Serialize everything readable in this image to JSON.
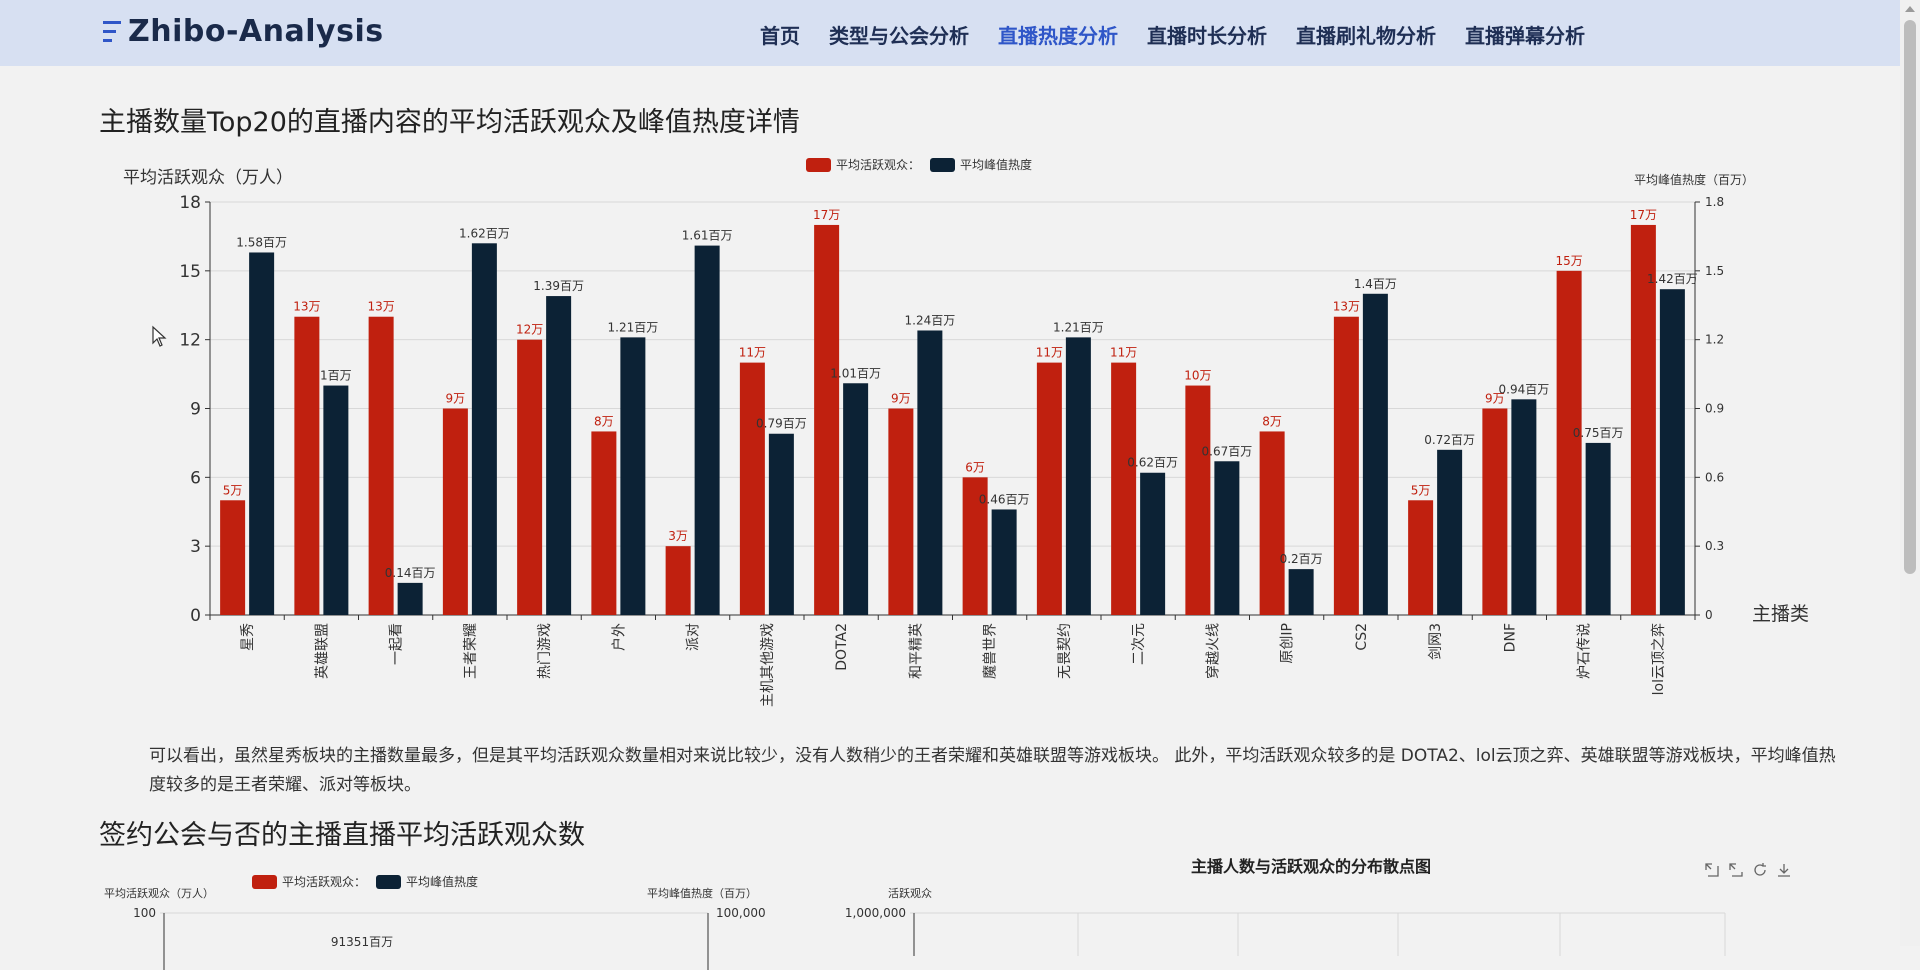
{
  "brand": {
    "name": "Zhibo-Analysis"
  },
  "nav": {
    "items": [
      "首页",
      "类型与公会分析",
      "直播热度分析",
      "直播时长分析",
      "直播刷礼物分析",
      "直播弹幕分析"
    ],
    "active_index": 2
  },
  "section1": {
    "title": "主播数量Top20的直播内容的平均活跃观众及峰值热度详情"
  },
  "section2": {
    "title": "签约公会与否的主播直播平均活跃观众数"
  },
  "paragraph": {
    "text": "可以看出，虽然星秀板块的主播数量最多，但是其平均活跃观众数量相对来说比较少，没有人数稍少的王者荣耀和英雄联盟等游戏板块。 此外，平均活跃观众较多的是 DOTA2、lol云顶之弈、英雄联盟等游戏板块，平均峰值热度较多的是王者荣耀、派对等板块。"
  },
  "colors": {
    "series1": "#c0200f",
    "series2": "#0c2235",
    "active_nav": "#2f56c8"
  },
  "chart_data": [
    {
      "type": "bar",
      "categories": [
        "星秀",
        "英雄联盟",
        "一起看",
        "王者荣耀",
        "热门游戏",
        "户外",
        "派对",
        "主机其他游戏",
        "DOTA2",
        "和平精英",
        "魔兽世界",
        "无畏契约",
        "二次元",
        "穿越火线",
        "原创IP",
        "CS2",
        "剑网3",
        "DNF",
        "炉石传说",
        "lol云顶之弈"
      ],
      "series": [
        {
          "name": "平均活跃观众：",
          "axis": "left",
          "values": [
            5,
            13,
            13,
            9,
            12,
            8,
            3,
            11,
            17,
            9,
            6,
            11,
            11,
            10,
            8,
            13,
            5,
            9,
            15,
            17
          ],
          "labels": [
            "5万",
            "13万",
            "13万",
            "9万",
            "12万",
            "8万",
            "3万",
            "11万",
            "17万",
            "9万",
            "6万",
            "11万",
            "11万",
            "10万",
            "8万",
            "13万",
            "5万",
            "9万",
            "15万",
            "17万"
          ]
        },
        {
          "name": "平均峰值热度",
          "axis": "right",
          "values": [
            1.58,
            1.0,
            0.14,
            1.62,
            1.39,
            1.21,
            1.61,
            0.79,
            1.01,
            1.24,
            0.46,
            1.21,
            0.62,
            0.67,
            0.2,
            1.4,
            0.72,
            0.94,
            0.75,
            1.42
          ],
          "labels": [
            "1.58百万",
            "1百万",
            "0.14百万",
            "1.62百万",
            "1.39百万",
            "1.21百万",
            "1.61百万",
            "0.79百万",
            "1.01百万",
            "1.24百万",
            "0.46百万",
            "1.21百万",
            "0.62百万",
            "0.67百万",
            "0.2百万",
            "1.4百万",
            "0.72百万",
            "0.94百万",
            "0.75百万",
            "1.42百万"
          ]
        }
      ],
      "ylabel": "平均活跃观众（万人）",
      "ylabel_right": "平均峰值热度（百万）",
      "xlabel": "主播类",
      "ylim": [
        0,
        18
      ],
      "yticks": [
        "0",
        "3",
        "6",
        "9",
        "12",
        "15",
        "18"
      ],
      "ylim_right": [
        0,
        1.8
      ],
      "yticks_right": [
        "0",
        "0.3",
        "0.6",
        "0.9",
        "1.2",
        "1.5",
        "1.8"
      ],
      "legend_position": "top-center",
      "grid": true
    },
    {
      "type": "bar",
      "legend": [
        "平均活跃观众：",
        "平均峰值热度"
      ],
      "ylabel": "平均活跃观众（万人）",
      "ylabel_right": "平均峰值热度（百万）",
      "ytick_top": "100",
      "ytick_top_right": "100,000",
      "visible_label": "91351百万"
    },
    {
      "type": "scatter",
      "title": "主播人数与活跃观众的分布散点图",
      "ylabel": "活跃观众",
      "ytick_top": "1,000,000",
      "toolbox": [
        "zoom-icon",
        "zoom-reset-icon",
        "restore-icon",
        "download-icon"
      ]
    }
  ]
}
